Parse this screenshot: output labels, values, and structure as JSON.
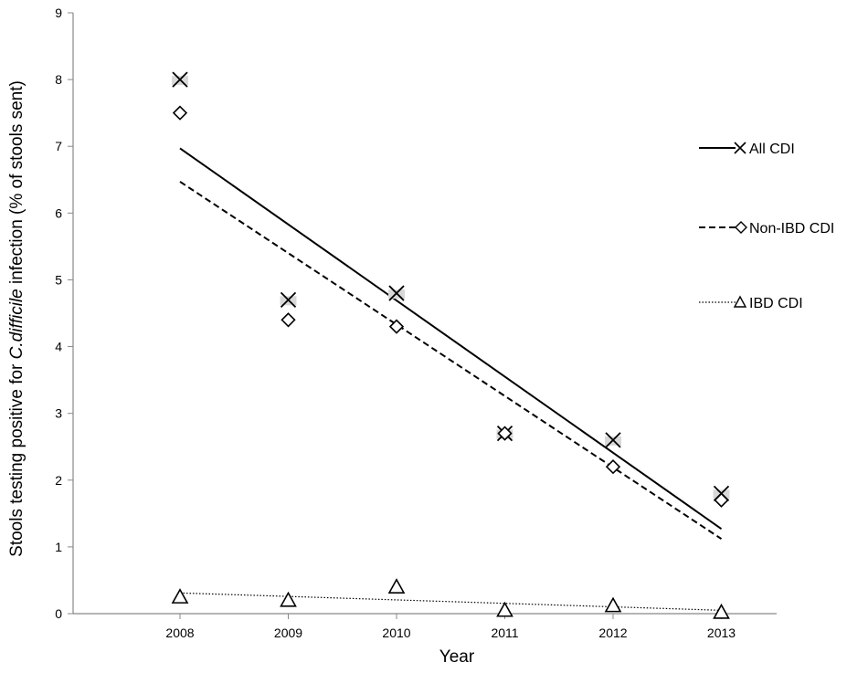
{
  "chart_data": {
    "type": "scatter",
    "title": "",
    "xlabel": "Year",
    "ylabel_parts": [
      "Stools testing positive for ",
      "C.difficile",
      " infection (% of  stools sent)"
    ],
    "x": [
      "2008",
      "2009",
      "2010",
      "2011",
      "2012",
      "2013"
    ],
    "ylim": [
      0,
      9
    ],
    "yticks": [
      "0",
      "1",
      "2",
      "3",
      "4",
      "5",
      "6",
      "7",
      "8",
      "9"
    ],
    "grid": false,
    "legend_position": "right",
    "series": [
      {
        "name": "All CDI",
        "marker": "x",
        "line_style": "solid",
        "values": [
          8.0,
          4.7,
          4.8,
          2.7,
          2.6,
          1.8
        ],
        "trendline": [
          6.97,
          1.27
        ]
      },
      {
        "name": "Non-IBD CDI",
        "marker": "diamond",
        "line_style": "dashed",
        "values": [
          7.5,
          4.4,
          4.3,
          2.7,
          2.2,
          1.7
        ],
        "trendline": [
          6.47,
          1.12
        ]
      },
      {
        "name": "IBD CDI",
        "marker": "triangle",
        "line_style": "dotted",
        "values": [
          0.25,
          0.2,
          0.4,
          0.05,
          0.12,
          0.02
        ],
        "trendline": [
          0.31,
          0.05
        ]
      }
    ]
  }
}
